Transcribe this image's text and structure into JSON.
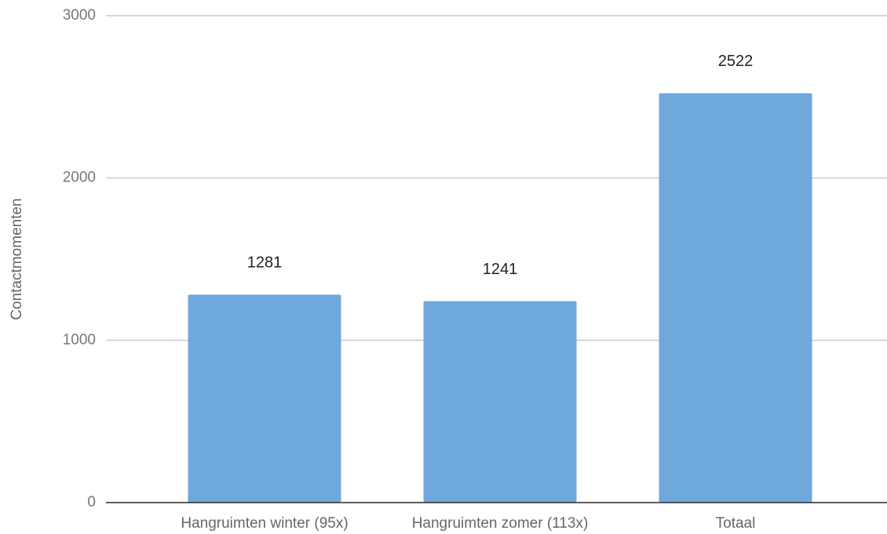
{
  "chart_data": {
    "type": "bar",
    "y_label": "Contactmomenten",
    "categories": [
      "Hangruimten winter (95x)",
      "Hangruimten zomer (113x)",
      "Totaal"
    ],
    "values": [
      1281,
      1241,
      2522
    ],
    "color": "#6fa8dc",
    "ylim": [
      0,
      3000
    ],
    "yticks": [
      0,
      1000,
      2000,
      3000
    ],
    "grid": true
  }
}
